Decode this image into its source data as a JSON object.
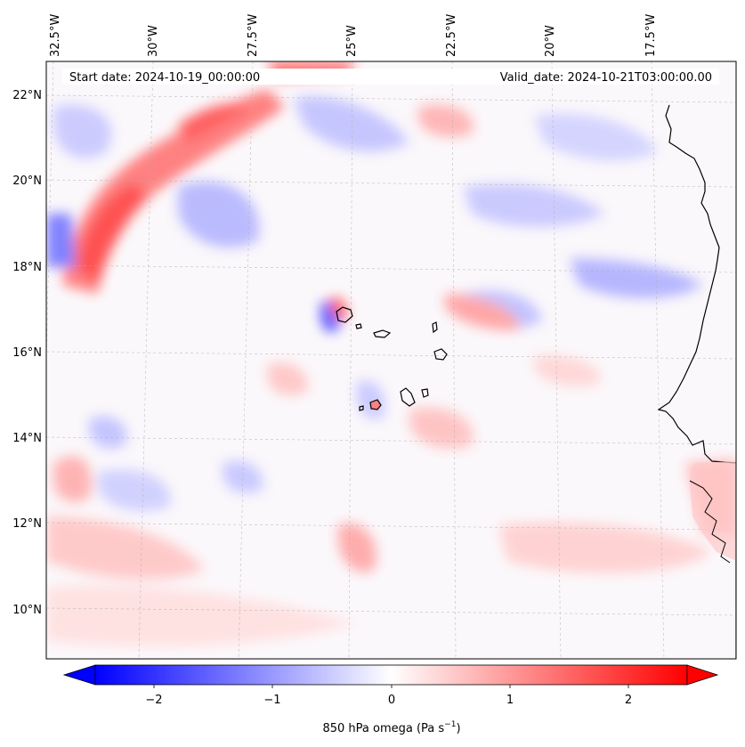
{
  "header": {
    "start_date": "Start date: 2024-10-19_00:00:00",
    "valid_date": "Valid_date: 2024-10-21T03:00:00.00"
  },
  "map": {
    "lon_labels": [
      "32.5°W",
      "30°W",
      "27.5°W",
      "25°W",
      "22.5°W",
      "20°W",
      "17.5°W"
    ],
    "lat_labels": [
      "22°N",
      "20°N",
      "18°N",
      "16°N",
      "14°N",
      "12°N",
      "10°N"
    ],
    "lon_extent": [
      -33.0,
      -15.0
    ],
    "lat_extent": [
      8.8,
      22.8
    ],
    "gridlines": true,
    "field": "850 hPa omega",
    "features": [
      "Cabo Verde islands",
      "West African coastline"
    ]
  },
  "colorbar": {
    "label": "850 hPa omega (Pa s",
    "label_sup": "−1",
    "label_close": ")",
    "ticks": [
      "−2",
      "−1",
      "0",
      "1",
      "2"
    ],
    "tick_values": [
      -2,
      -1,
      0,
      1,
      2
    ],
    "range": [
      -2.5,
      2.5
    ],
    "colormap": "bwr",
    "extend": "both",
    "colors": {
      "min": "#0000ff",
      "mid": "#ffffff",
      "max": "#ff0000"
    }
  }
}
